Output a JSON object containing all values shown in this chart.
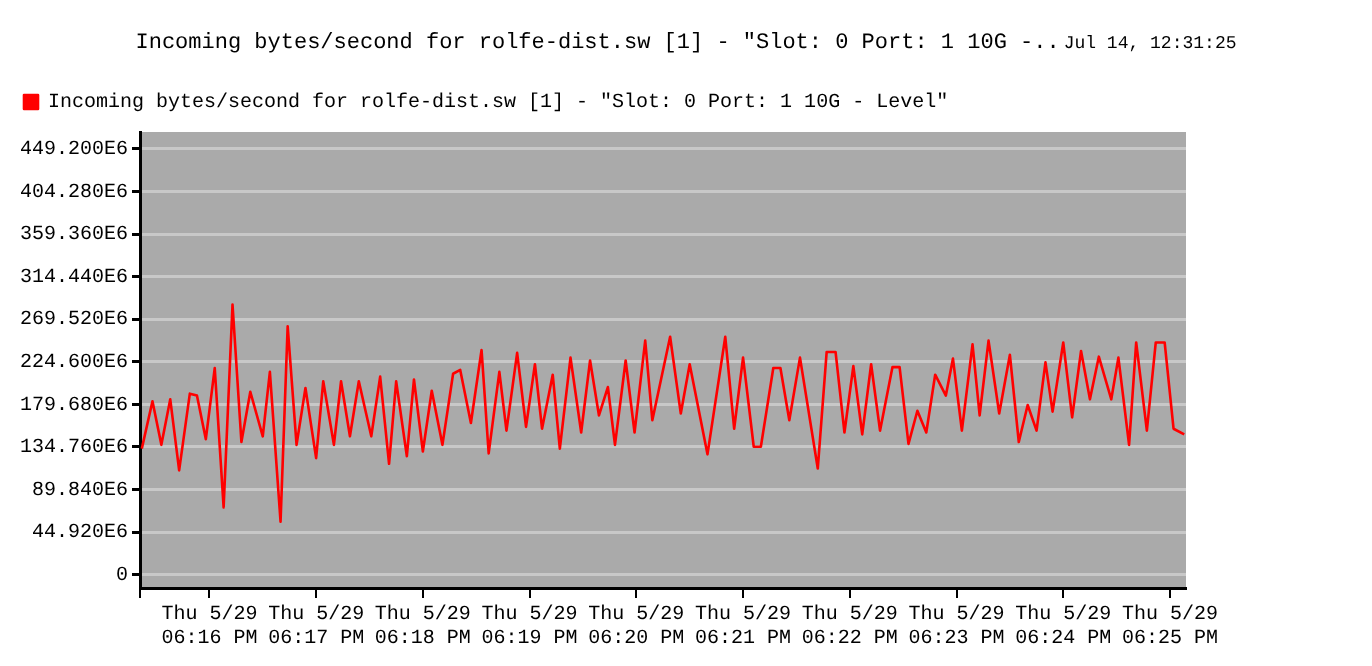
{
  "chart_data": {
    "type": "line",
    "title": "Incoming bytes/second for rolfe-dist.sw [1] - \"Slot: 0 Port: 1 10G -..",
    "subtitle": "Jul 14, 12:31:25",
    "legend": "top left",
    "grid": "y",
    "xlim": [
      "--05-29T18:15:21",
      "--05-29T18:25:09"
    ],
    "xticks": [
      {
        "value": "--05-29T18:15:21",
        "label": null
      },
      {
        "value": "--05-29T18:16",
        "label": "Thu 5/29\n06:16 PM"
      },
      {
        "value": "--05-29T18:17",
        "label": "Thu 5/29\n06:17 PM"
      },
      {
        "value": "--05-29T18:18",
        "label": "Thu 5/29\n06:18 PM"
      },
      {
        "value": "--05-29T18:19",
        "label": "Thu 5/29\n06:19 PM"
      },
      {
        "value": "--05-29T18:20",
        "label": "Thu 5/29\n06:20 PM"
      },
      {
        "value": "--05-29T18:21",
        "label": "Thu 5/29\n06:21 PM"
      },
      {
        "value": "--05-29T18:22",
        "label": "Thu 5/29\n06:22 PM"
      },
      {
        "value": "--05-29T18:23",
        "label": "Thu 5/29\n06:23 PM"
      },
      {
        "value": "--05-29T18:24",
        "label": "Thu 5/29\n06:24 PM"
      },
      {
        "value": "--05-29T18:25",
        "label": "Thu 5/29\n06:25 PM"
      }
    ],
    "ylim": [
      -14000000,
      467000000
    ],
    "yticks": [
      0,
      {
        "value": 44920000,
        "label": "44.920E6"
      },
      {
        "value": 89840000,
        "label": "89.840E6"
      },
      {
        "value": 134760000,
        "label": "134.760E6"
      },
      {
        "value": 179680000,
        "label": "179.680E6"
      },
      {
        "value": 224600000,
        "label": "224.600E6"
      },
      {
        "value": 269520000,
        "label": "269.520E6"
      },
      {
        "value": 314440000,
        "label": "314.440E6"
      },
      {
        "value": 359360000,
        "label": "359.360E6"
      },
      {
        "value": 404280000,
        "label": "404.280E6"
      },
      {
        "value": 449200000,
        "label": "449.200E6"
      }
    ],
    "series": [
      {
        "name": "Incoming bytes/second for rolfe-dist.sw [1] - \"Slot: 0 Port: 1 10G - Level\"",
        "color": "#ff0000",
        "x": [
          "--05-29T18:15:22",
          "--05-29T18:15:28",
          "--05-29T18:15:33",
          "--05-29T18:15:38",
          "--05-29T18:15:43",
          "--05-29T18:15:49",
          "--05-29T18:15:53",
          "--05-29T18:15:58",
          "--05-29T18:16:03",
          "--05-29T18:16:08",
          "--05-29T18:16:13",
          "--05-29T18:16:18",
          "--05-29T18:16:23",
          "--05-29T18:16:30",
          "--05-29T18:16:34",
          "--05-29T18:16:40",
          "--05-29T18:16:44",
          "--05-29T18:16:49",
          "--05-29T18:16:54",
          "--05-29T18:17:00",
          "--05-29T18:17:04",
          "--05-29T18:17:10",
          "--05-29T18:17:14",
          "--05-29T18:17:19",
          "--05-29T18:17:24",
          "--05-29T18:17:31",
          "--05-29T18:17:36",
          "--05-29T18:17:41",
          "--05-29T18:17:45",
          "--05-29T18:17:51",
          "--05-29T18:17:55",
          "--05-29T18:18:00",
          "--05-29T18:18:05",
          "--05-29T18:18:11",
          "--05-29T18:18:17",
          "--05-29T18:18:21",
          "--05-29T18:18:27",
          "--05-29T18:18:33",
          "--05-29T18:18:37",
          "--05-29T18:18:43",
          "--05-29T18:18:47",
          "--05-29T18:18:53",
          "--05-29T18:18:58",
          "--05-29T18:19:03",
          "--05-29T18:19:07",
          "--05-29T18:19:13",
          "--05-29T18:19:17",
          "--05-29T18:19:23",
          "--05-29T18:19:29",
          "--05-29T18:19:34",
          "--05-29T18:19:39",
          "--05-29T18:19:44",
          "--05-29T18:19:48",
          "--05-29T18:19:54",
          "--05-29T18:19:59",
          "--05-29T18:20:05",
          "--05-29T18:20:09",
          "--05-29T18:20:19",
          "--05-29T18:20:25",
          "--05-29T18:20:30",
          "--05-29T18:20:40",
          "--05-29T18:20:50",
          "--05-29T18:20:55",
          "--05-29T18:21:00",
          "--05-29T18:21:06",
          "--05-29T18:21:10",
          "--05-29T18:21:17",
          "--05-29T18:21:21",
          "--05-29T18:21:26",
          "--05-29T18:21:32",
          "--05-29T18:21:42",
          "--05-29T18:21:47",
          "--05-29T18:21:52",
          "--05-29T18:21:57",
          "--05-29T18:22:02",
          "--05-29T18:22:07",
          "--05-29T18:22:12",
          "--05-29T18:22:17",
          "--05-29T18:22:24",
          "--05-29T18:22:28",
          "--05-29T18:22:33",
          "--05-29T18:22:38",
          "--05-29T18:22:43",
          "--05-29T18:22:48",
          "--05-29T18:22:54",
          "--05-29T18:22:58",
          "--05-29T18:23:03",
          "--05-29T18:23:09",
          "--05-29T18:23:13",
          "--05-29T18:23:18",
          "--05-29T18:23:24",
          "--05-29T18:23:30",
          "--05-29T18:23:35",
          "--05-29T18:23:40",
          "--05-29T18:23:45",
          "--05-29T18:23:50",
          "--05-29T18:23:54",
          "--05-29T18:24:00",
          "--05-29T18:24:05",
          "--05-29T18:24:10",
          "--05-29T18:24:15",
          "--05-29T18:24:20",
          "--05-29T18:24:27",
          "--05-29T18:24:31",
          "--05-29T18:24:37",
          "--05-29T18:24:41",
          "--05-29T18:24:47",
          "--05-29T18:24:52",
          "--05-29T18:24:57",
          "--05-29T18:25:02",
          "--05-29T18:25:08"
        ],
        "values": [
          133000000,
          183000000,
          137000000,
          185000000,
          110000000,
          191000000,
          189000000,
          143000000,
          218000000,
          71000000,
          285000000,
          140000000,
          193000000,
          146000000,
          214000000,
          56000000,
          262000000,
          137000000,
          197000000,
          123000000,
          204000000,
          137000000,
          204000000,
          146000000,
          204000000,
          146000000,
          209000000,
          117000000,
          204000000,
          125000000,
          206000000,
          130000000,
          194000000,
          137000000,
          212000000,
          216000000,
          160000000,
          237000000,
          128000000,
          214000000,
          152000000,
          234000000,
          156000000,
          222000000,
          154000000,
          211000000,
          133000000,
          229000000,
          150000000,
          226000000,
          168000000,
          198000000,
          137000000,
          226000000,
          150000000,
          247000000,
          163000000,
          251000000,
          170000000,
          222000000,
          127000000,
          251000000,
          154000000,
          229000000,
          135000000,
          135000000,
          218000000,
          218000000,
          163000000,
          229000000,
          112000000,
          235000000,
          235000000,
          150000000,
          220000000,
          148000000,
          222000000,
          152000000,
          219000000,
          219000000,
          138000000,
          173000000,
          150000000,
          211000000,
          189000000,
          228000000,
          152000000,
          243000000,
          168000000,
          247000000,
          170000000,
          232000000,
          140000000,
          179000000,
          152000000,
          224000000,
          172000000,
          245000000,
          166000000,
          236000000,
          185000000,
          230000000,
          185000000,
          229000000,
          137000000,
          245000000,
          152000000,
          245000000,
          245000000,
          154000000,
          148000000
        ]
      }
    ]
  }
}
